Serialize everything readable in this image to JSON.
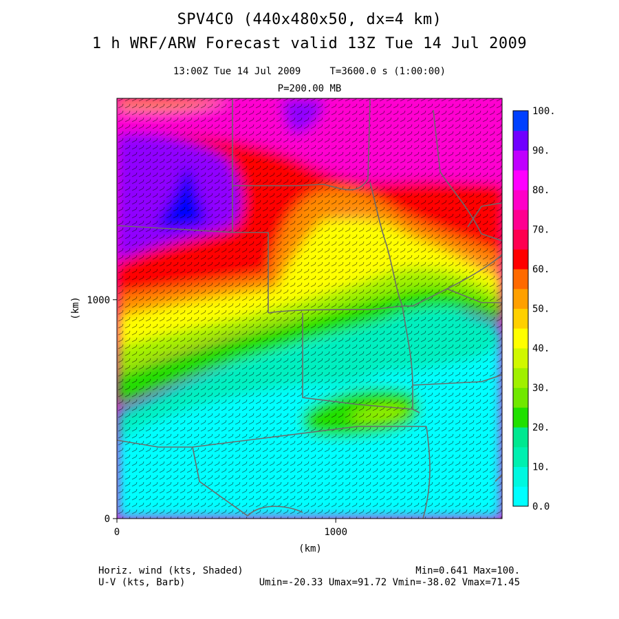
{
  "header": {
    "title_line1": "SPV4C0 (440x480x50, dx=4 km)",
    "title_line2": "1 h WRF/ARW Forecast valid 13Z Tue 14 Jul 2009",
    "subtitle_time": "13:00Z Tue 14 Jul 2009     T=3600.0 s (1:00:00)",
    "subtitle_level": "P=200.00 MB"
  },
  "footer": {
    "left_line1": "Horiz. wind (kts, Shaded)",
    "left_line2": "U-V (kts, Barb)",
    "right_line1": "Min=0.641 Max=100.",
    "right_line2": "Umin=-20.33 Umax=91.72 Vmin=-38.02 Vmax=71.45"
  },
  "chart_data": {
    "type": "heatmap",
    "title": "SPV4C0 (440x480x50, dx=4 km)",
    "subtitle": "1 h WRF/ARW Forecast valid 13Z Tue 14 Jul 2009",
    "xlabel": "(km)",
    "ylabel": "(km)",
    "xlim": [
      0,
      1760
    ],
    "ylim": [
      0,
      1920
    ],
    "x_ticks": [
      {
        "value": 0,
        "label": "0"
      },
      {
        "value": 1000,
        "label": "1000"
      }
    ],
    "y_ticks": [
      {
        "value": 0,
        "label": "0"
      },
      {
        "value": 1000,
        "label": "1000"
      }
    ],
    "colorbar": {
      "levels": [
        0,
        10,
        20,
        30,
        40,
        50,
        60,
        70,
        80,
        90,
        100
      ],
      "labels": [
        "0.0",
        "10.",
        "20.",
        "30.",
        "40.",
        "50.",
        "60.",
        "70.",
        "80.",
        "90.",
        "100."
      ],
      "colors": [
        "#00ffff",
        "#00f0c0",
        "#20e000",
        "#a0f000",
        "#ffff00",
        "#ffc000",
        "#ff7000",
        "#ff0000",
        "#ff0070",
        "#ff00c8",
        "#ff00ff",
        "#c000ff",
        "#7000ff",
        "#0000ff",
        "#0060ff"
      ]
    },
    "field_colors": {
      "calm": "#00ffff",
      "light": "#00f0c0",
      "green": "#20e000",
      "lime": "#a0f000",
      "yellow": "#ffff00",
      "orange": "#ff8c00",
      "red": "#ff0000",
      "rose": "#ff0060",
      "magenta": "#ff00d0",
      "violet": "#9000ff",
      "blue": "#0000ff"
    },
    "grid_lines": false,
    "overlays": "state boundaries (gray), wind barbs (black)"
  }
}
